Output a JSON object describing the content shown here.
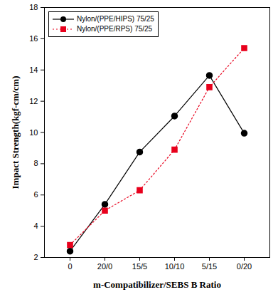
{
  "chart_data": {
    "type": "line",
    "x_label": "m-Compatibilizer/SEBS B Ratio",
    "y_label": "Impact Strength(kgf-cm/cm)",
    "categories": [
      "0",
      "20/0",
      "15/5",
      "10/10",
      "5/15",
      "0/20"
    ],
    "series": [
      {
        "name": "Nylon/(PPE/HIPS) 75/25",
        "color": "#000000",
        "marker": "circle",
        "line_style": "solid",
        "values": [
          2.4,
          5.4,
          8.75,
          11.05,
          13.65,
          9.95
        ]
      },
      {
        "name": "Nylon/(PPE/RPS) 75/25",
        "color": "#e8001c",
        "marker": "square",
        "line_style": "dotted",
        "values": [
          2.8,
          5.0,
          6.3,
          8.9,
          12.9,
          15.4
        ]
      }
    ],
    "ylim": [
      2,
      18
    ],
    "yticks": [
      2,
      4,
      6,
      8,
      10,
      12,
      14,
      16,
      18
    ],
    "grid": false,
    "legend": "upper left"
  }
}
